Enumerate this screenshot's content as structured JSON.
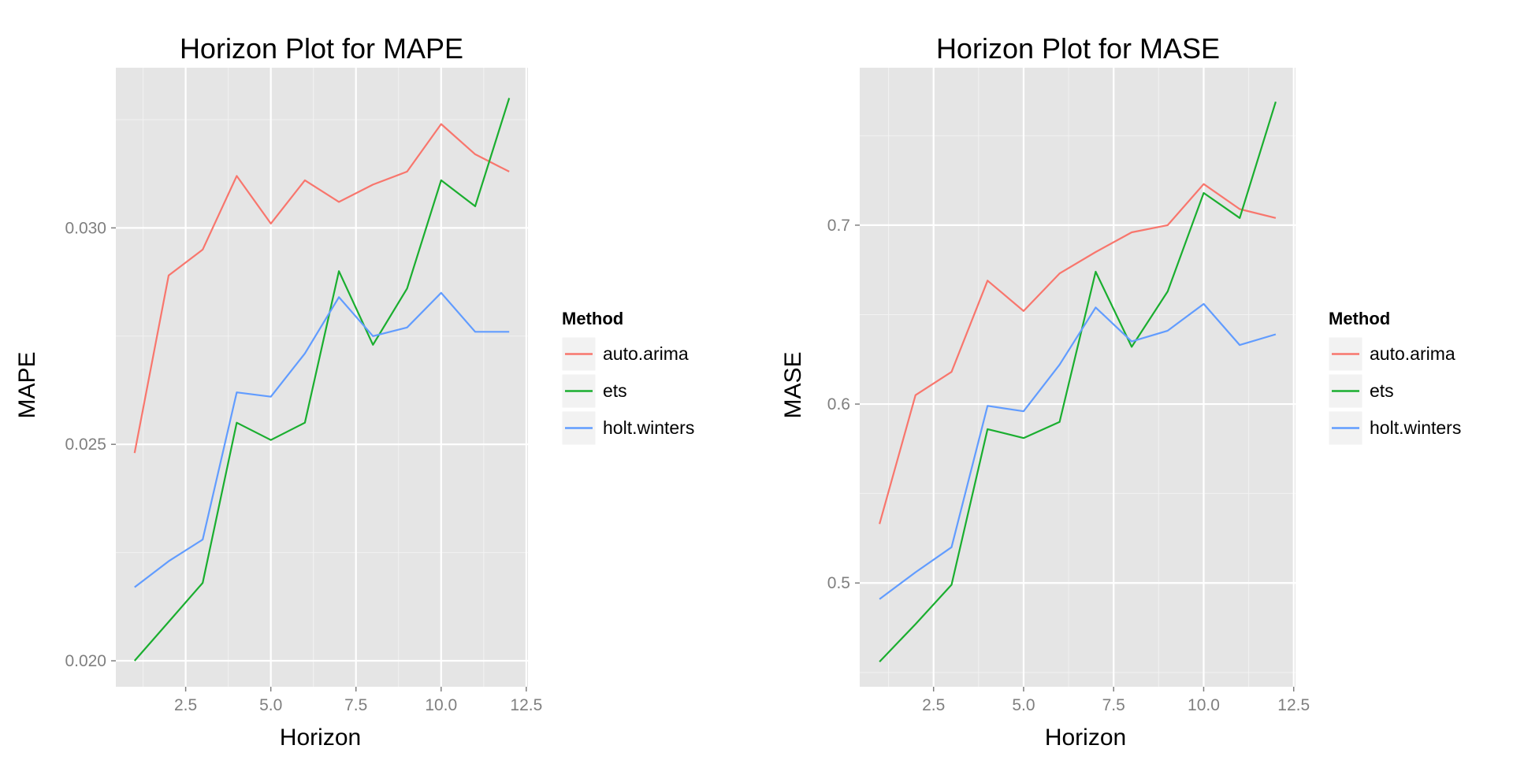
{
  "legend": {
    "title": "Method",
    "entries": [
      "auto.arima",
      "ets",
      "holt.winters"
    ],
    "colors": [
      "#F8766D",
      "#1AAE2F",
      "#619CFF"
    ]
  },
  "chart_data": [
    {
      "type": "line",
      "title": "Horizon Plot for MAPE",
      "xlabel": "Horizon",
      "ylabel": "MAPE",
      "xlim": [
        0.45,
        12.55
      ],
      "ylim": [
        0.0194,
        0.0337
      ],
      "xticks": [
        "2.5",
        "5.0",
        "7.5",
        "10.0",
        "12.5"
      ],
      "yticks": [
        "0.020",
        "0.025",
        "0.030"
      ],
      "grid": true,
      "legend_position": "right",
      "x": [
        1,
        2,
        3,
        4,
        5,
        6,
        7,
        8,
        9,
        10,
        11,
        12
      ],
      "series": [
        {
          "name": "auto.arima",
          "values": [
            0.0248,
            0.0289,
            0.0295,
            0.0312,
            0.0301,
            0.0311,
            0.0306,
            0.031,
            0.0313,
            0.0324,
            0.0317,
            0.0313
          ]
        },
        {
          "name": "ets",
          "values": [
            0.02,
            0.0209,
            0.0218,
            0.0255,
            0.0251,
            0.0255,
            0.029,
            0.0273,
            0.0286,
            0.0311,
            0.0305,
            0.033
          ]
        },
        {
          "name": "holt.winters",
          "values": [
            0.0217,
            0.0223,
            0.0228,
            0.0262,
            0.0261,
            0.0271,
            0.0284,
            0.0275,
            0.0277,
            0.0285,
            0.0276,
            0.0276
          ]
        }
      ]
    },
    {
      "type": "line",
      "title": "Horizon Plot for MASE",
      "xlabel": "Horizon",
      "ylabel": "MASE",
      "xlim": [
        0.45,
        12.55
      ],
      "ylim": [
        0.442,
        0.788
      ],
      "xticks": [
        "2.5",
        "5.0",
        "7.5",
        "10.0",
        "12.5"
      ],
      "yticks": [
        "0.5",
        "0.6",
        "0.7"
      ],
      "grid": true,
      "legend_position": "right",
      "x": [
        1,
        2,
        3,
        4,
        5,
        6,
        7,
        8,
        9,
        10,
        11,
        12
      ],
      "series": [
        {
          "name": "auto.arima",
          "values": [
            0.533,
            0.605,
            0.618,
            0.669,
            0.652,
            0.673,
            0.685,
            0.696,
            0.7,
            0.723,
            0.709,
            0.704
          ]
        },
        {
          "name": "ets",
          "values": [
            0.456,
            0.477,
            0.499,
            0.586,
            0.581,
            0.59,
            0.674,
            0.632,
            0.663,
            0.718,
            0.704,
            0.769
          ]
        },
        {
          "name": "holt.winters",
          "values": [
            0.491,
            0.506,
            0.52,
            0.599,
            0.596,
            0.622,
            0.654,
            0.635,
            0.641,
            0.656,
            0.633,
            0.639
          ]
        }
      ]
    }
  ]
}
